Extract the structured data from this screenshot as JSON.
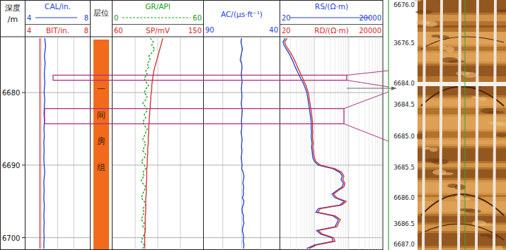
{
  "chart_data": {
    "type": "well_log",
    "depth_title": [
      "深度",
      "/m"
    ],
    "zone_title": "层位",
    "formation": "一间房组",
    "ylim": [
      6672.3,
      6701.7
    ],
    "yticks": [
      6680,
      6690,
      6700
    ],
    "grid": true,
    "depth": [
      6672.5,
      6673,
      6673.5,
      6674,
      6674.5,
      6675,
      6675.5,
      6676,
      6676.5,
      6677,
      6677.5,
      6678,
      6678.5,
      6679,
      6679.5,
      6680,
      6680.5,
      6681,
      6681.5,
      6682,
      6682.5,
      6683,
      6683.5,
      6684,
      6684.5,
      6685,
      6685.5,
      6686,
      6686.5,
      6687,
      6687.5,
      6688,
      6688.5,
      6689,
      6689.5,
      6690,
      6690.5,
      6691,
      6691.5,
      6692,
      6692.5,
      6693,
      6693.5,
      6694,
      6694.5,
      6695,
      6695.5,
      6696,
      6696.5,
      6697,
      6697.5,
      6698,
      6698.5,
      6699,
      6699.5,
      6700,
      6700.5,
      6701,
      6701.5
    ],
    "tracks": [
      {
        "curves": [
          {
            "name": "CAL/in.",
            "color": "#1f3fd0",
            "xlim": [
              4,
              8
            ],
            "xticks": [
              4,
              8
            ],
            "line_style": "solid",
            "values": [
              5.2,
              5.22,
              5.25,
              5.23,
              5.2,
              5.18,
              5.2,
              5.22,
              5.2,
              5.18,
              5.17,
              5.18,
              5.2,
              5.19,
              5.17,
              5.16,
              5.18,
              5.2,
              5.18,
              5.17,
              5.16,
              5.15,
              5.17,
              5.18,
              5.16,
              5.15,
              5.16,
              5.17,
              5.15,
              5.14,
              5.15,
              5.16,
              5.15,
              5.14,
              5.15,
              5.16,
              5.18,
              5.2,
              5.17,
              5.15,
              5.14,
              5.15,
              5.16,
              5.15,
              5.14,
              5.15,
              5.17,
              5.16,
              5.15,
              5.14,
              5.15,
              5.16,
              5.15,
              5.14,
              5.15,
              5.16,
              5.15,
              5.14,
              5.15
            ]
          },
          {
            "name": "BIT/in.",
            "color": "#d42a2a",
            "xlim": [
              4,
              8
            ],
            "xticks": [
              4,
              8
            ],
            "line_style": "solid",
            "values": [
              4.9,
              4.9,
              4.9,
              4.9,
              4.9,
              4.9,
              4.9,
              4.9,
              4.9,
              4.9,
              4.9,
              4.9,
              4.9,
              4.9,
              4.9,
              4.9,
              4.9,
              4.9,
              4.9,
              4.9,
              4.9,
              4.9,
              4.9,
              4.9,
              4.9,
              4.9,
              4.9,
              4.9,
              4.9,
              4.9,
              4.9,
              4.9,
              4.9,
              4.9,
              4.9,
              4.9,
              4.9,
              4.9,
              4.9,
              4.9,
              4.9,
              4.9,
              4.9,
              4.9,
              4.9,
              4.9,
              4.9,
              4.9,
              4.9,
              4.9,
              4.9,
              4.9,
              4.9,
              4.9,
              4.9,
              4.9,
              4.9,
              4.9,
              4.9
            ]
          }
        ]
      },
      {
        "curves": [
          {
            "name": "GR/API",
            "color": "#1a9a1a",
            "xlim": [
              0,
              60
            ],
            "xticks": [
              0,
              60
            ],
            "line_style": "dashed",
            "values": [
              25,
              27,
              26,
              28,
              26,
              24,
              25,
              23,
              24,
              22,
              23,
              21,
              22,
              24,
              22,
              21,
              23,
              22,
              20,
              22,
              23,
              21,
              22,
              20,
              21,
              23,
              22,
              21,
              20,
              22,
              21,
              20,
              22,
              21,
              19,
              21,
              22,
              20,
              21,
              19,
              20,
              22,
              21,
              20,
              19,
              21,
              22,
              20,
              21,
              20,
              19,
              21,
              20,
              22,
              21,
              20,
              19,
              21,
              20
            ]
          },
          {
            "name": "SP/mV",
            "color": "#d42a2a",
            "xlim": [
              60,
              150
            ],
            "xticks": [
              60,
              150
            ],
            "line_style": "solid",
            "values": [
              110,
              109,
              108,
              107,
              106,
              105,
              104,
              103,
              102,
              101,
              100.5,
              100,
              99.5,
              99,
              99,
              98.5,
              98,
              98,
              97.5,
              97.5,
              97,
              97,
              96.5,
              96.5,
              96,
              96,
              96,
              95.5,
              95.5,
              95.5,
              95,
              95,
              95,
              94.5,
              94.5,
              94.5,
              94,
              94,
              94,
              94,
              93.5,
              93.5,
              93.5,
              93.5,
              93,
              93,
              93,
              93,
              93,
              92.5,
              92.5,
              92.5,
              92.5,
              92.5,
              92,
              92,
              92,
              92,
              92
            ]
          }
        ]
      },
      {
        "curves": [
          {
            "name": "AC/(μs·ft⁻¹)",
            "color": "#1f3fd0",
            "xlim": [
              90,
              40
            ],
            "xticks": [
              90,
              40
            ],
            "line_style": "solid",
            "values": [
              65,
              65.5,
              65,
              64.5,
              65,
              65.5,
              66,
              65,
              64.8,
              65,
              65.3,
              65,
              64.7,
              65,
              65.2,
              65,
              64.8,
              65,
              65.3,
              65,
              64.6,
              64.8,
              65,
              65.2,
              64.9,
              65,
              65.4,
              65,
              64.7,
              65,
              65.1,
              64.8,
              65,
              65.3,
              65,
              64.7,
              65,
              64,
              63.5,
              63.8,
              64.2,
              63.6,
              64,
              63.8,
              64.5,
              63.5,
              64,
              64.8,
              64.5,
              63.8,
              64,
              63.5,
              64.2,
              64.6,
              64,
              63.7,
              64,
              63.5,
              63.8
            ]
          }
        ]
      },
      {
        "log": true,
        "curves": [
          {
            "name": "RS/(Ω·m)",
            "color": "#1f3fd0",
            "xlim": [
              20,
              20000
            ],
            "xticks": [
              20,
              20000
            ],
            "line_style": "solid",
            "values": [
              28,
              24,
              26,
              30,
              35,
              40,
              45,
              50,
              55,
              62,
              70,
              78,
              90,
              100,
              110,
              120,
              125,
              130,
              135,
              140,
              145,
              150,
              155,
              160,
              160,
              160,
              165,
              160,
              165,
              170,
              165,
              170,
              175,
              180,
              200,
              260,
              700,
              1100,
              1300,
              1200,
              1400,
              1300,
              900,
              650,
              800,
              1500,
              1100,
              260,
              220,
              700,
              1000,
              900,
              800,
              230,
              300,
              650,
              700,
              200,
              120
            ]
          },
          {
            "name": "RD/(Ω·m)",
            "color": "#d42a2a",
            "xlim": [
              20,
              20000
            ],
            "xticks": [
              20,
              20000
            ],
            "line_style": "solid",
            "values": [
              32,
              27,
              29,
              34,
              40,
              46,
              52,
              58,
              64,
              72,
              80,
              90,
              100,
              112,
              122,
              132,
              138,
              142,
              148,
              154,
              160,
              165,
              170,
              175,
              175,
              175,
              180,
              175,
              180,
              185,
              180,
              185,
              190,
              200,
              220,
              300,
              800,
              1250,
              1450,
              1350,
              1550,
              1450,
              1000,
              720,
              900,
              1700,
              1250,
              300,
              250,
              800,
              1150,
              1000,
              900,
              260,
              340,
              720,
              800,
              230,
              140
            ]
          }
        ]
      }
    ],
    "highlights": [
      [
        6677.6,
        6678.3
      ],
      [
        6682.2,
        6684.3
      ]
    ],
    "image": {
      "depth_labels": [
        "6676.0",
        "3676.5",
        "6684.0",
        "3684.5",
        "6685.0",
        "3685.5",
        "6686.0",
        "3686.5",
        "6687.0"
      ]
    }
  }
}
